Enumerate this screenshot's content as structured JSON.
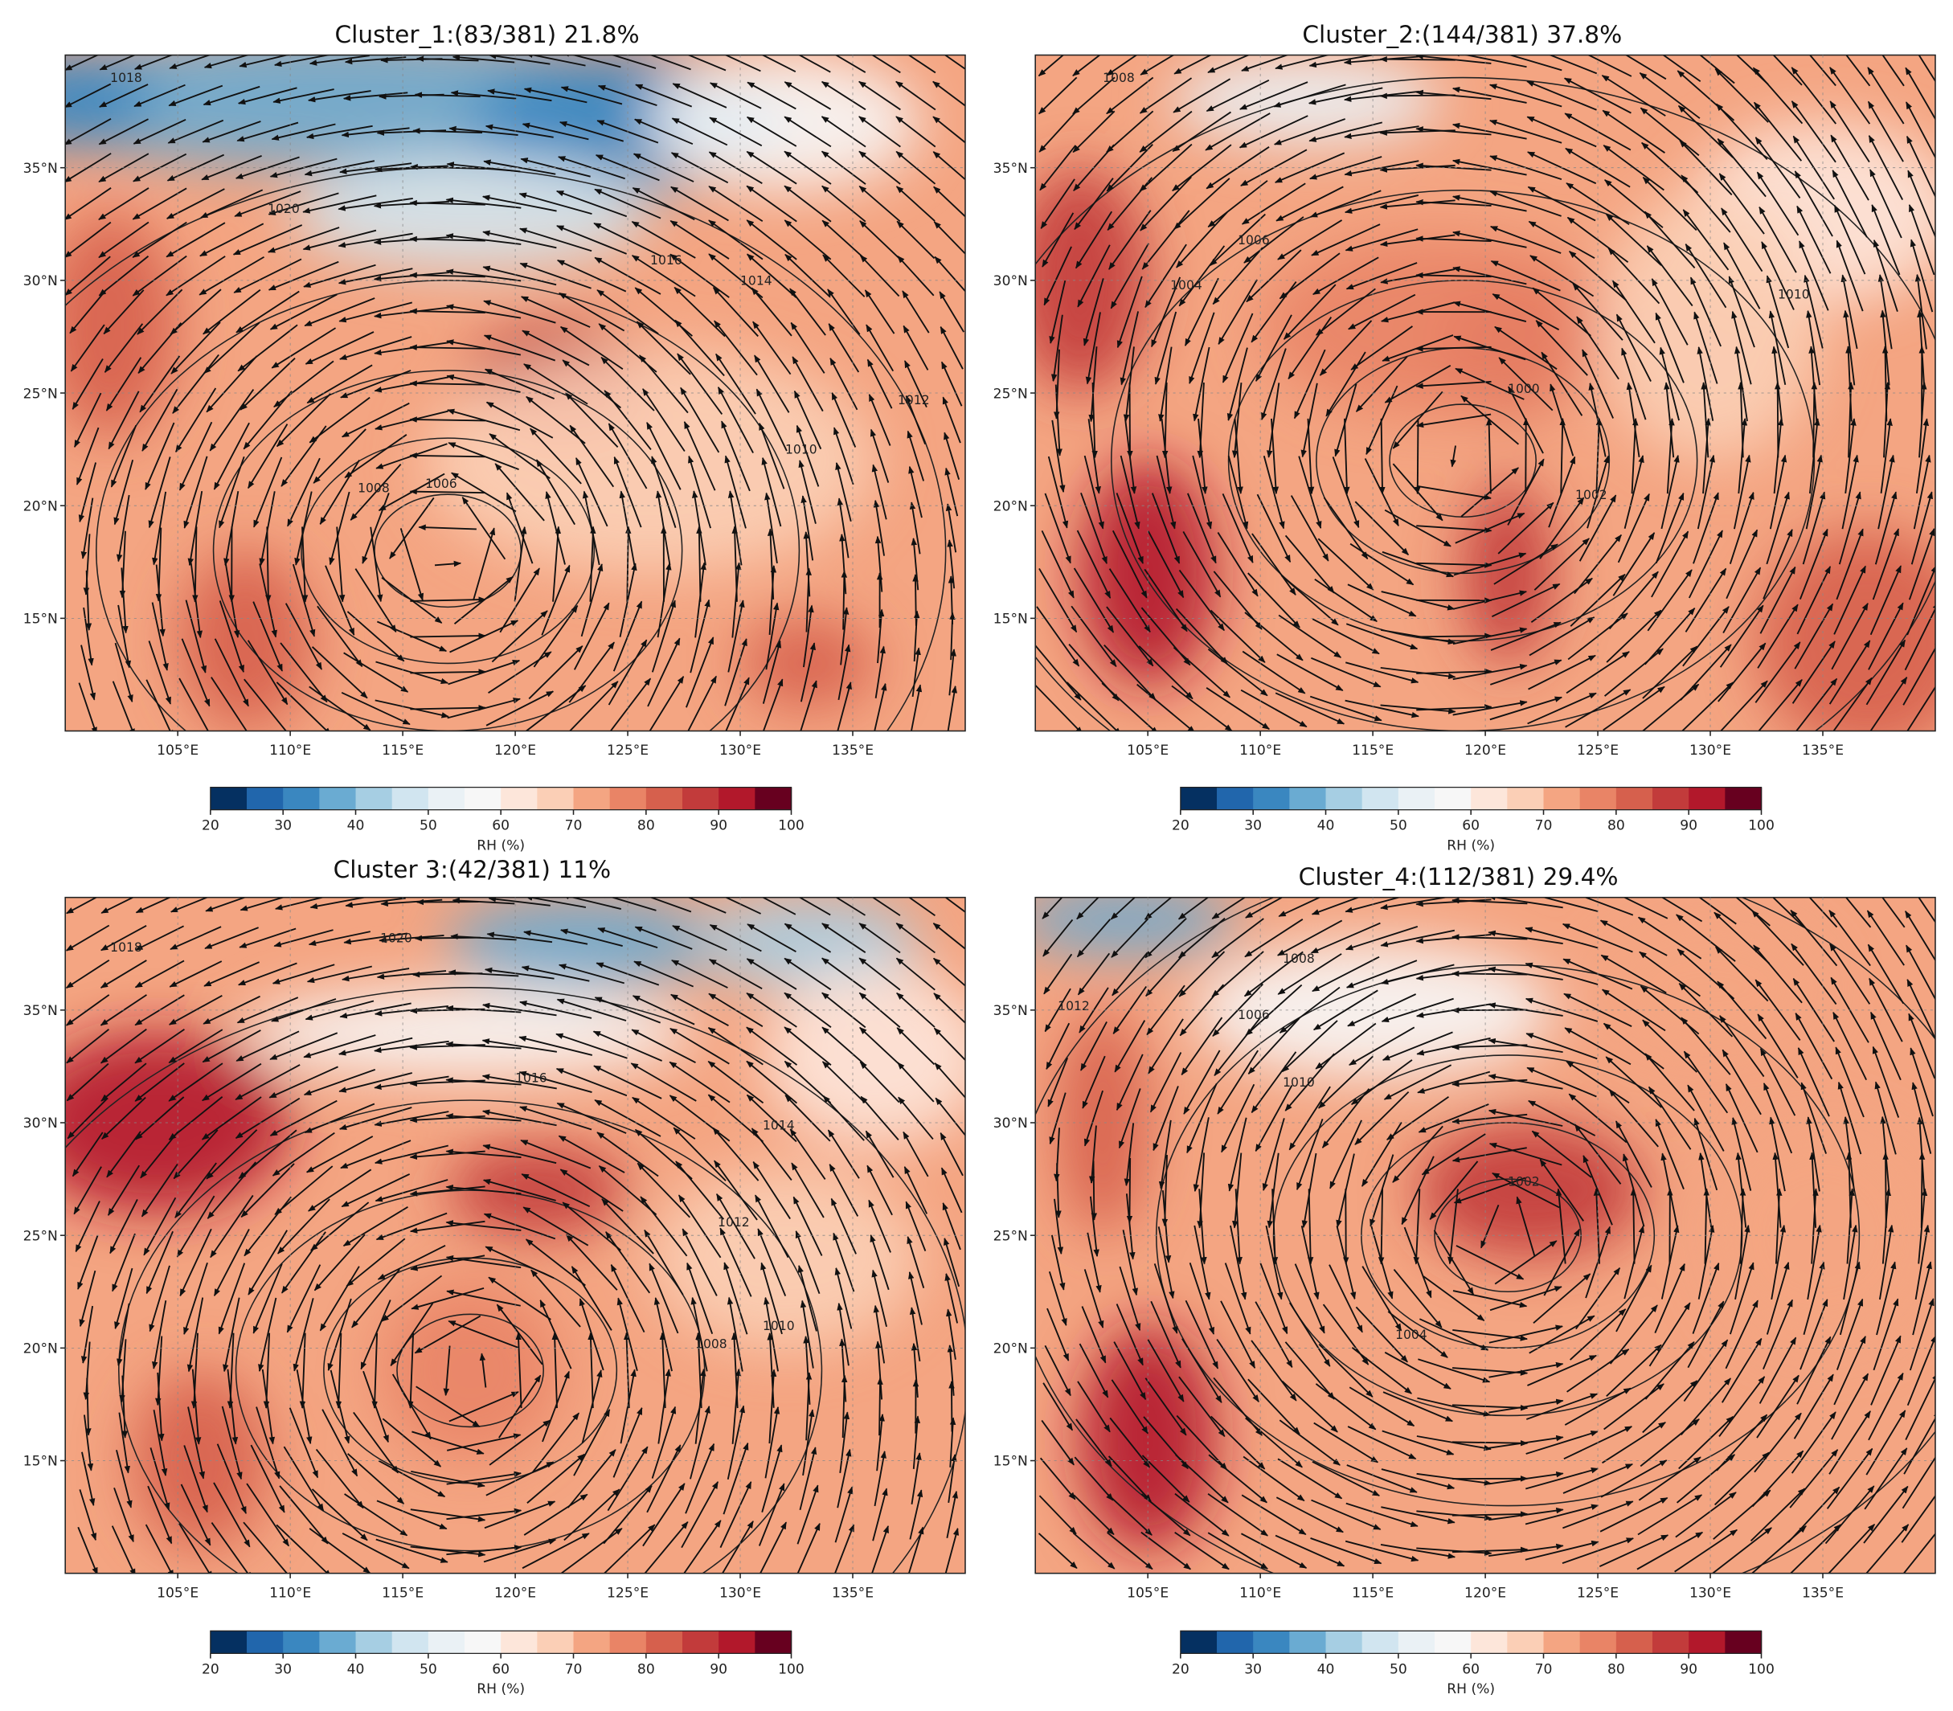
{
  "map": {
    "xlim": [
      100,
      140
    ],
    "ylim": [
      10,
      40
    ],
    "xticks": [
      {
        "value": 105,
        "label": "105°E"
      },
      {
        "value": 110,
        "label": "110°E"
      },
      {
        "value": 115,
        "label": "115°E"
      },
      {
        "value": 120,
        "label": "120°E"
      },
      {
        "value": 125,
        "label": "125°E"
      },
      {
        "value": 130,
        "label": "130°E"
      },
      {
        "value": 135,
        "label": "135°E"
      }
    ],
    "yticks": [
      {
        "value": 15,
        "label": "15°N"
      },
      {
        "value": 20,
        "label": "20°N"
      },
      {
        "value": 25,
        "label": "25°N"
      },
      {
        "value": 30,
        "label": "30°N"
      },
      {
        "value": 35,
        "label": "35°N"
      }
    ]
  },
  "colorbar": {
    "label": "RH (%)",
    "lim": [
      20,
      100
    ],
    "ticks": [
      20,
      30,
      40,
      50,
      60,
      70,
      80,
      90,
      100
    ],
    "colors": [
      "#053061",
      "#2166ac",
      "#3a87c0",
      "#6aabd2",
      "#a6cee3",
      "#d1e5f0",
      "#eaf1f5",
      "#f7f7f7",
      "#fde6da",
      "#fbcfb6",
      "#f4a582",
      "#e98466",
      "#d6604d",
      "#c23b3b",
      "#b2182b",
      "#67001f"
    ]
  },
  "panels": [
    {
      "title": "Cluster_1:(83/381) 21.8%",
      "contour_labels": [
        "1018",
        "1020",
        "1016",
        "1014",
        "1012",
        "1010",
        "1008",
        "1006"
      ]
    },
    {
      "title": "Cluster_2:(144/381) 37.8%",
      "contour_labels": [
        "1008",
        "1006",
        "1004",
        "1010",
        "1002",
        "1000"
      ]
    },
    {
      "title": "Cluster 3:(42/381) 11%",
      "contour_labels": [
        "1018",
        "1020",
        "1016",
        "1014",
        "1012",
        "1010",
        "1008"
      ]
    },
    {
      "title": "Cluster_4:(112/381) 29.4%",
      "contour_labels": [
        "1008",
        "1012",
        "1006",
        "1010",
        "1004",
        "1002"
      ]
    }
  ]
}
